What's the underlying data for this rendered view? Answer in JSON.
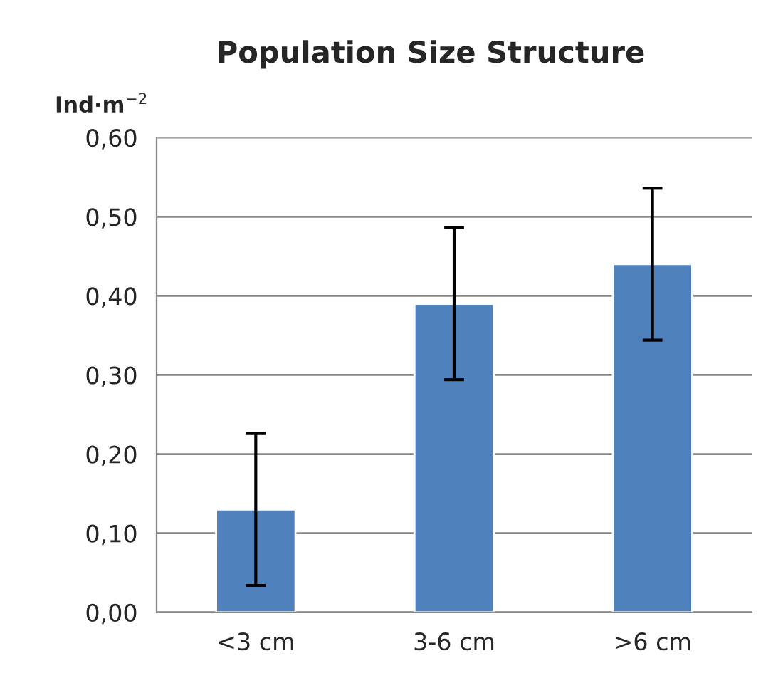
{
  "chart_data": {
    "type": "bar",
    "title": "Population Size Structure",
    "ylabel": "Ind·m$^{−2}$",
    "categories": [
      "<3 cm",
      "3-6 cm",
      ">6 cm"
    ],
    "values": [
      0.13,
      0.39,
      0.44
    ],
    "errors": [
      0.096,
      0.096,
      0.096
    ],
    "color": "#4f81bd",
    "ylim": [
      0,
      0.6
    ],
    "yticks": [
      {
        "value": 0,
        "label": "0,00"
      },
      {
        "value": 0.1,
        "label": "0,10"
      },
      {
        "value": 0.2,
        "label": "0,20"
      },
      {
        "value": 0.3,
        "label": "0,30"
      },
      {
        "value": 0.4,
        "label": "0,40"
      },
      {
        "value": 0.5,
        "label": "0,50"
      },
      {
        "value": 0.6,
        "label": "0,60"
      }
    ],
    "grid": "y",
    "legend": false
  }
}
